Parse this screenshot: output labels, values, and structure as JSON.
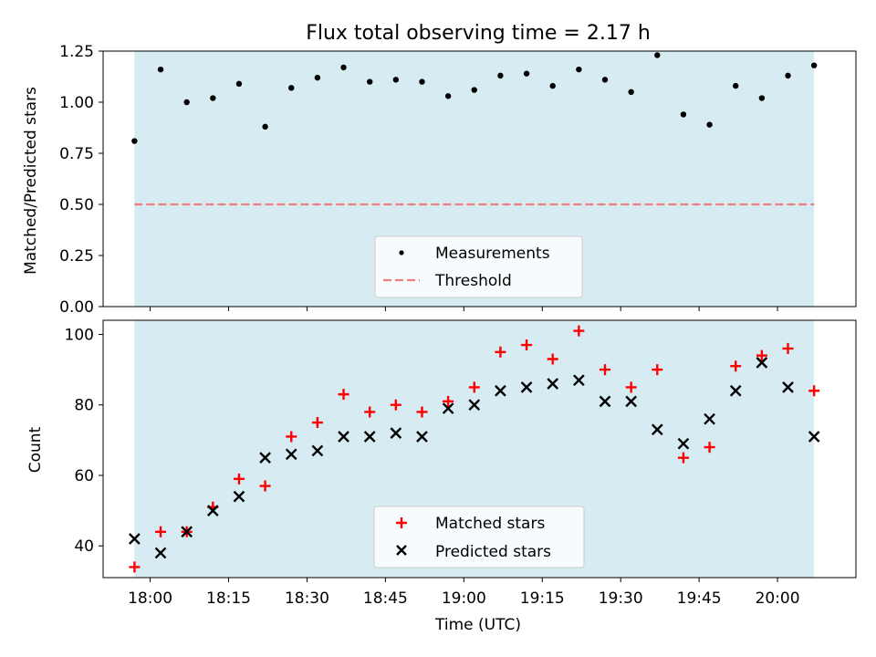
{
  "chart_data": [
    {
      "type": "scatter",
      "title": "Flux total observing time = 2.17 h",
      "xlabel": "",
      "ylabel": "Matched/Predicted stars",
      "ylim": [
        0,
        1.25
      ],
      "yticks": [
        "0.00",
        "0.25",
        "0.50",
        "0.75",
        "1.00",
        "1.25"
      ],
      "shade_color": "#add8e6",
      "series": [
        {
          "name": "Measurements",
          "marker": "dot",
          "color": "#000000",
          "x": [
            "17:57",
            "18:02",
            "18:07",
            "18:12",
            "18:17",
            "18:22",
            "18:27",
            "18:32",
            "18:37",
            "18:42",
            "18:47",
            "18:52",
            "18:57",
            "19:02",
            "19:07",
            "19:12",
            "19:17",
            "19:22",
            "19:27",
            "19:32",
            "19:37",
            "19:42",
            "19:47",
            "19:52",
            "19:57",
            "20:02",
            "20:07"
          ],
          "y": [
            0.81,
            1.16,
            1.0,
            1.02,
            1.09,
            0.88,
            1.07,
            1.12,
            1.17,
            1.1,
            1.11,
            1.1,
            1.03,
            1.06,
            1.13,
            1.14,
            1.08,
            1.16,
            1.11,
            1.05,
            1.23,
            0.94,
            0.89,
            1.08,
            1.02,
            1.13,
            1.18
          ]
        },
        {
          "name": "Threshold",
          "marker": "dashed-line",
          "color": "#f08080",
          "y": 0.5
        }
      ],
      "legend": "lower-center"
    },
    {
      "type": "scatter",
      "xlabel": "Time (UTC)",
      "ylabel": "Count",
      "ylim": [
        31,
        104
      ],
      "yticks": [
        "40",
        "60",
        "80",
        "100"
      ],
      "xticks": [
        "18:00",
        "18:15",
        "18:30",
        "18:45",
        "19:00",
        "19:15",
        "19:30",
        "19:45",
        "20:00"
      ],
      "xlim": [
        "17:51",
        "20:15"
      ],
      "series": [
        {
          "name": "Matched stars",
          "marker": "plus",
          "color": "#ff0000",
          "x": [
            "17:57",
            "18:02",
            "18:07",
            "18:12",
            "18:17",
            "18:22",
            "18:27",
            "18:32",
            "18:37",
            "18:42",
            "18:47",
            "18:52",
            "18:57",
            "19:02",
            "19:07",
            "19:12",
            "19:17",
            "19:22",
            "19:27",
            "19:32",
            "19:37",
            "19:42",
            "19:47",
            "19:52",
            "19:57",
            "20:02",
            "20:07"
          ],
          "y": [
            34,
            44,
            44,
            51,
            59,
            57,
            71,
            75,
            83,
            78,
            80,
            78,
            81,
            85,
            95,
            97,
            93,
            101,
            90,
            85,
            90,
            65,
            68,
            91,
            94,
            96,
            84
          ]
        },
        {
          "name": "Predicted stars",
          "marker": "x",
          "color": "#000000",
          "x": [
            "17:57",
            "18:02",
            "18:07",
            "18:12",
            "18:17",
            "18:22",
            "18:27",
            "18:32",
            "18:37",
            "18:42",
            "18:47",
            "18:52",
            "18:57",
            "19:02",
            "19:07",
            "19:12",
            "19:17",
            "19:22",
            "19:27",
            "19:32",
            "19:37",
            "19:42",
            "19:47",
            "19:52",
            "19:57",
            "20:02",
            "20:07"
          ],
          "y": [
            42,
            38,
            44,
            50,
            54,
            65,
            66,
            67,
            71,
            71,
            72,
            71,
            79,
            80,
            84,
            85,
            86,
            87,
            81,
            81,
            73,
            69,
            76,
            84,
            92,
            85,
            71
          ]
        }
      ],
      "legend": "lower-center"
    }
  ]
}
